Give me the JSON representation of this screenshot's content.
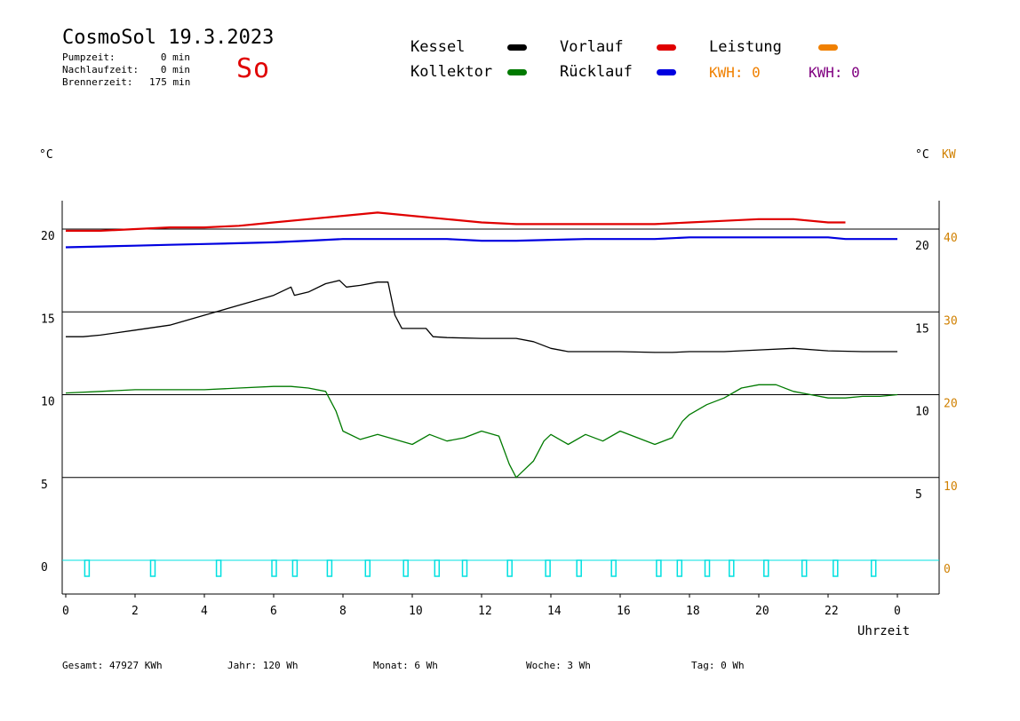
{
  "header": {
    "title": "CosmoSol 19.3.2023",
    "day": "So",
    "info": [
      {
        "label": "Pumpzeit:",
        "value": "0 min"
      },
      {
        "label": "Nachlaufzeit:",
        "value": "0 min"
      },
      {
        "label": "Brennerzeit:",
        "value": "175 min"
      }
    ]
  },
  "legend": {
    "kessel": "Kessel",
    "kollektor": "Kollektor",
    "vorlauf": "Vorlauf",
    "ruecklauf": "Rücklauf",
    "leistung": "Leistung",
    "kwh1": "KWH: 0",
    "kwh2": "KWH: 0"
  },
  "colors": {
    "kessel": "#000000",
    "kollektor": "#007a00",
    "vorlauf": "#e00000",
    "ruecklauf": "#0000e0",
    "leistung": "#f08000",
    "kwh2": "#800080",
    "pump": "#00e0e0",
    "kw_axis": "#d08000"
  },
  "footer": {
    "gesamt": "Gesamt:  47927 KWh",
    "jahr": "Jahr:   120 Wh",
    "monat": "Monat:     6 Wh",
    "woche": "Woche:     3 Wh",
    "tag": "Tag:     0 Wh"
  },
  "chart_data": {
    "type": "line",
    "xlabel": "Uhrzeit",
    "ylabel_left": "°C",
    "ylabel_right": "°C",
    "ylabel_right2": "KW",
    "x_ticks": [
      "0",
      "2",
      "4",
      "6",
      "8",
      "10",
      "12",
      "14",
      "16",
      "18",
      "20",
      "22",
      "0"
    ],
    "left_ticks": [
      "20",
      "15",
      "10",
      "5",
      "0"
    ],
    "right_ticks_c": [
      "20",
      "15",
      "10",
      "5"
    ],
    "right_ticks_kw": [
      "40",
      "30",
      "20",
      "10",
      "0"
    ],
    "xlim": [
      0,
      24
    ],
    "ylim": [
      -2,
      22
    ],
    "grid_y": [
      20,
      15,
      10,
      5,
      0
    ],
    "series": [
      {
        "name": "Vorlauf",
        "key": "vorlauf",
        "x": [
          0,
          1,
          2,
          3,
          4,
          5,
          6,
          7,
          8,
          9,
          10,
          11,
          12,
          13,
          14,
          15,
          16,
          17,
          18,
          19,
          20,
          21,
          22,
          22.5
        ],
        "y": [
          19.9,
          19.9,
          20.0,
          20.1,
          20.1,
          20.2,
          20.4,
          20.6,
          20.8,
          21.0,
          20.8,
          20.6,
          20.4,
          20.3,
          20.3,
          20.3,
          20.3,
          20.3,
          20.4,
          20.5,
          20.6,
          20.6,
          20.4,
          20.4
        ]
      },
      {
        "name": "Rücklauf",
        "key": "ruecklauf",
        "x": [
          0,
          1,
          2,
          3,
          4,
          5,
          6,
          7,
          8,
          9,
          10,
          11,
          12,
          13,
          14,
          15,
          16,
          17,
          18,
          19,
          20,
          21,
          22,
          22.5,
          24
        ],
        "y": [
          18.9,
          18.95,
          19.0,
          19.05,
          19.1,
          19.15,
          19.2,
          19.3,
          19.4,
          19.4,
          19.4,
          19.4,
          19.3,
          19.3,
          19.35,
          19.4,
          19.4,
          19.4,
          19.5,
          19.5,
          19.5,
          19.5,
          19.5,
          19.4,
          19.4
        ]
      },
      {
        "name": "Kessel",
        "key": "kessel",
        "x": [
          0,
          0.5,
          1,
          2,
          3,
          4,
          5,
          6,
          6.5,
          6.6,
          7,
          7.5,
          7.9,
          8.1,
          8.5,
          9,
          9.3,
          9.5,
          9.7,
          10,
          10.4,
          10.6,
          11,
          12,
          13,
          13.5,
          14,
          14.5,
          15,
          16,
          17,
          17.5,
          18,
          19,
          20,
          21,
          22,
          23,
          24
        ],
        "y": [
          13.5,
          13.5,
          13.6,
          13.9,
          14.2,
          14.8,
          15.4,
          16.0,
          16.5,
          16.0,
          16.2,
          16.7,
          16.9,
          16.5,
          16.6,
          16.8,
          16.8,
          14.8,
          14.0,
          14.0,
          14.0,
          13.5,
          13.45,
          13.4,
          13.4,
          13.2,
          12.8,
          12.6,
          12.6,
          12.6,
          12.55,
          12.55,
          12.6,
          12.6,
          12.7,
          12.8,
          12.65,
          12.6,
          12.6
        ]
      },
      {
        "name": "Kollektor",
        "key": "kollektor",
        "x": [
          0,
          1,
          2,
          3,
          4,
          5,
          6,
          6.5,
          7,
          7.5,
          7.8,
          8,
          8.5,
          9,
          9.5,
          10,
          10.5,
          11,
          11.5,
          12,
          12.5,
          12.8,
          13,
          13.2,
          13.5,
          13.8,
          14,
          14.5,
          15,
          15.5,
          16,
          16.5,
          17,
          17.5,
          17.8,
          18,
          18.5,
          19,
          19.5,
          20,
          20.5,
          21,
          21.5,
          22,
          22.5,
          23,
          23.5,
          24
        ],
        "y": [
          10.1,
          10.2,
          10.3,
          10.3,
          10.3,
          10.4,
          10.5,
          10.5,
          10.4,
          10.2,
          9.0,
          7.8,
          7.3,
          7.6,
          7.3,
          7.0,
          7.6,
          7.2,
          7.4,
          7.8,
          7.5,
          5.8,
          5.0,
          5.4,
          6.0,
          7.2,
          7.6,
          7.0,
          7.6,
          7.2,
          7.8,
          7.4,
          7.0,
          7.4,
          8.4,
          8.8,
          9.4,
          9.8,
          10.4,
          10.6,
          10.6,
          10.2,
          10.0,
          9.8,
          9.8,
          9.9,
          9.9,
          10.0
        ]
      }
    ],
    "pump_pulses_x": [
      0.6,
      2.5,
      4.4,
      6.0,
      6.6,
      7.6,
      8.7,
      9.8,
      10.7,
      11.5,
      12.8,
      13.9,
      14.8,
      15.8,
      17.1,
      17.7,
      18.5,
      19.2,
      20.2,
      21.3,
      22.2,
      23.3
    ]
  }
}
